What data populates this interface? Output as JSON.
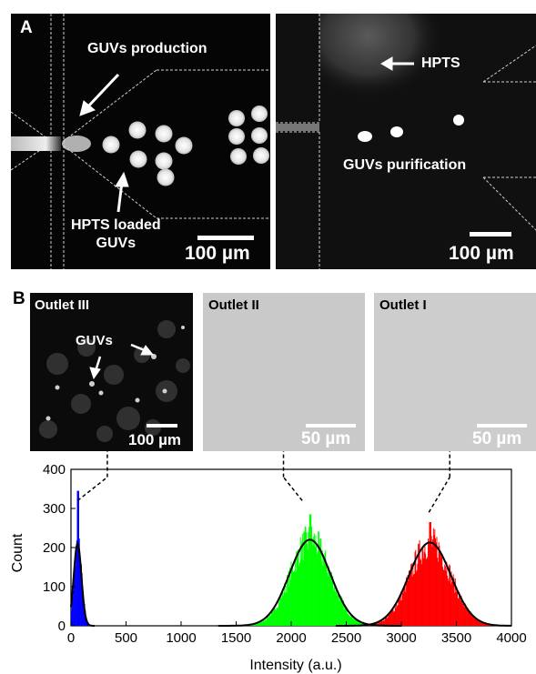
{
  "panel_a": {
    "label": "A",
    "left": {
      "annotation_production": "GUVs production",
      "annotation_loaded_line1": "HPTS loaded",
      "annotation_loaded_line2": "GUVs",
      "scale_text": "100 µm"
    },
    "right": {
      "annotation_hpts": "HPTS",
      "annotation_purification": "GUVs purification",
      "scale_text": "100 µm"
    }
  },
  "panel_b": {
    "label": "B",
    "outlet3": {
      "title": "Outlet III",
      "guvs_label": "GUVs",
      "scale_text": "100 µm"
    },
    "outlet2": {
      "title": "Outlet II",
      "scale_text": "50 µm"
    },
    "outlet1": {
      "title": "Outlet I",
      "scale_text": "50 µm"
    }
  },
  "colors": {
    "outlet_iii": "#0000ff",
    "outlet_ii": "#00ff00",
    "outlet_i": "#ff0000",
    "fit": "#000000"
  },
  "chart_data": {
    "type": "histogram",
    "xlabel": "Intensity (a.u.)",
    "ylabel": "Count",
    "xlim": [
      0,
      4000
    ],
    "ylim": [
      0,
      400
    ],
    "xticks": [
      0,
      500,
      1000,
      1500,
      2000,
      2500,
      3000,
      3500,
      4000
    ],
    "yticks": [
      0,
      100,
      200,
      300,
      400
    ],
    "series": [
      {
        "color": "#0000ff",
        "center": 60,
        "sigma": 35,
        "peak": 345,
        "fit_peak": 210,
        "fit_sigma": 35
      },
      {
        "color": "#00ff00",
        "center": 2170,
        "sigma": 180,
        "peak": 285,
        "fit_peak": 220,
        "fit_sigma": 185
      },
      {
        "color": "#ff0000",
        "center": 3260,
        "sigma": 185,
        "peak": 265,
        "fit_peak": 213,
        "fit_sigma": 190
      }
    ],
    "connectors": [
      {
        "from_x": 60,
        "from_y": 320,
        "to_x": 330,
        "to_y": 380
      },
      {
        "from_x": 2100,
        "from_y": 320,
        "to_x": 1930,
        "to_y": 380
      },
      {
        "from_x": 3250,
        "from_y": 290,
        "to_x": 3440,
        "to_y": 380
      }
    ]
  }
}
